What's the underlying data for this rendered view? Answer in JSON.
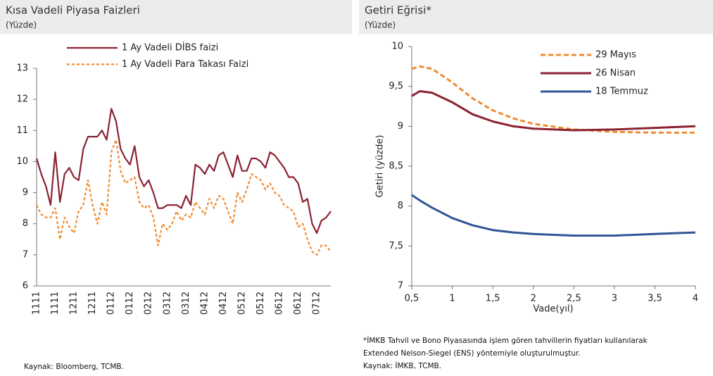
{
  "chart_data": [
    {
      "type": "line",
      "title": "Kısa Vadeli Piyasa Faizleri",
      "subtitle": "(Yüzde)",
      "source": "Kaynak: Bloomberg, TCMB.",
      "categories": [
        "1111",
        null,
        null,
        null,
        "1111",
        null,
        null,
        null,
        "1211",
        null,
        null,
        null,
        "1211",
        null,
        null,
        null,
        "0112",
        null,
        null,
        null,
        "0112",
        null,
        null,
        null,
        "0212",
        null,
        null,
        null,
        "0312",
        null,
        null,
        null,
        "0312",
        null,
        null,
        null,
        "0412",
        null,
        null,
        null,
        "0412",
        null,
        null,
        null,
        "0512",
        null,
        null,
        null,
        "0512",
        null,
        null,
        null,
        "0612",
        null,
        null,
        null,
        "0612",
        null,
        null,
        null,
        "0712",
        null,
        null,
        null
      ],
      "series": [
        {
          "name": "1 Ay Vadeli DİBS faizi",
          "color": "#8b2232",
          "dashed": false,
          "values": [
            10.1,
            9.6,
            9.2,
            8.6,
            10.3,
            8.7,
            9.6,
            9.8,
            9.5,
            9.4,
            10.4,
            10.8,
            10.8,
            10.8,
            11.0,
            10.7,
            11.7,
            11.3,
            10.4,
            10.1,
            9.9,
            10.5,
            9.5,
            9.2,
            9.4,
            9.0,
            8.5,
            8.5,
            8.6,
            8.6,
            8.6,
            8.5,
            8.9,
            8.6,
            9.9,
            9.8,
            9.6,
            9.9,
            9.7,
            10.2,
            10.3,
            9.9,
            9.5,
            10.2,
            9.7,
            9.7,
            10.1,
            10.1,
            10.0,
            9.8,
            10.3,
            10.2,
            10.0,
            9.8,
            9.5,
            9.5,
            9.3,
            8.7,
            8.8,
            8.0,
            7.7,
            8.1,
            8.2,
            8.4
          ]
        },
        {
          "name": "1 Ay Vadeli Para Takası Faizi",
          "color": "#f08a30",
          "dashed": true,
          "values": [
            8.6,
            8.3,
            8.2,
            8.2,
            8.5,
            7.5,
            8.2,
            7.9,
            7.7,
            8.4,
            8.6,
            9.4,
            8.6,
            8.0,
            8.7,
            8.3,
            10.3,
            10.7,
            9.7,
            9.3,
            9.4,
            9.5,
            8.7,
            8.5,
            8.6,
            8.2,
            7.3,
            8.0,
            7.8,
            8.0,
            8.4,
            8.1,
            8.3,
            8.2,
            8.7,
            8.5,
            8.3,
            8.8,
            8.5,
            8.9,
            8.8,
            8.4,
            8.0,
            9.0,
            8.7,
            9.1,
            9.6,
            9.5,
            9.4,
            9.1,
            9.3,
            9.0,
            8.9,
            8.6,
            8.5,
            8.4,
            7.9,
            8.0,
            7.5,
            7.1,
            7.0,
            7.3,
            7.3,
            7.1
          ]
        }
      ],
      "ylim": [
        6,
        13
      ],
      "yticks": [
        6,
        7,
        8,
        9,
        10,
        11,
        12,
        13
      ],
      "grid": false,
      "legend": "upper center"
    },
    {
      "type": "line",
      "title": "Getiri Eğrisi*",
      "subtitle": "(Yüzde)",
      "xlabel": "Vade(yıl)",
      "ylabel": "Getiri (yüzde)",
      "notes": [
        "*İMKB Tahvil ve Bono Piyasasında işlem gören tahvillerin fiyatları kullanılarak",
        "Extended Nelson-Siegel (ENS) yöntemiyle oluşturulmuştur."
      ],
      "source": "Kaynak: İMKB, TCMB.",
      "x": [
        0.5,
        0.6,
        0.75,
        1,
        1.25,
        1.5,
        1.75,
        2,
        2.5,
        3,
        3.5,
        4
      ],
      "series": [
        {
          "name": "29 Mayıs",
          "color": "#f08a30",
          "dashed": true,
          "values": [
            9.72,
            9.75,
            9.72,
            9.55,
            9.35,
            9.2,
            9.1,
            9.03,
            8.96,
            8.93,
            8.92,
            8.92
          ]
        },
        {
          "name": "26 Nisan",
          "color": "#8b2232",
          "dashed": false,
          "values": [
            9.38,
            9.44,
            9.42,
            9.3,
            9.15,
            9.06,
            9.0,
            8.97,
            8.95,
            8.96,
            8.98,
            9.0
          ]
        },
        {
          "name": "18 Temmuz",
          "color": "#2f5597",
          "dashed": false,
          "values": [
            8.14,
            8.07,
            7.98,
            7.85,
            7.76,
            7.7,
            7.67,
            7.65,
            7.63,
            7.63,
            7.65,
            7.67
          ]
        }
      ],
      "xlim": [
        0.5,
        4
      ],
      "xticks": [
        {
          "value": 0.5,
          "label": "0,5"
        },
        1,
        {
          "value": 1.5,
          "label": "1,5"
        },
        2,
        {
          "value": 2.5,
          "label": "2,5"
        },
        3,
        {
          "value": 3.5,
          "label": "3,5"
        },
        4
      ],
      "ylim": [
        7,
        10
      ],
      "yticks": [
        7,
        {
          "value": 7.5,
          "label": "7,5"
        },
        8,
        {
          "value": 8.5,
          "label": "8,5"
        },
        9,
        {
          "value": 9.5,
          "label": "9,5"
        },
        10
      ],
      "grid": false,
      "legend": "upper right"
    }
  ]
}
